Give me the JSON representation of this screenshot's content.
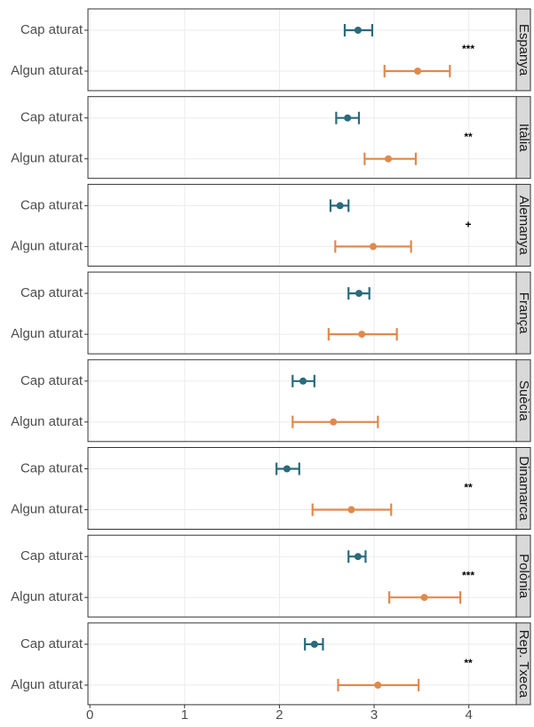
{
  "chart_data": {
    "type": "errorbar",
    "xlim": [
      -0.02,
      4.5
    ],
    "xticks": [
      0,
      1,
      2,
      3,
      4
    ],
    "grid": true,
    "colors": [
      "#2a6a7c",
      "#e0894d"
    ],
    "facets": [
      {
        "label": "Espanya",
        "categories": [
          "Cap aturat",
          "Algun aturat"
        ],
        "values": [
          2.83,
          3.46
        ],
        "lower": [
          2.69,
          3.11
        ],
        "upper": [
          2.98,
          3.8
        ],
        "annotation": "***"
      },
      {
        "label": "Itàlia",
        "categories": [
          "Cap aturat",
          "Algun aturat"
        ],
        "values": [
          2.72,
          3.15
        ],
        "lower": [
          2.6,
          2.9
        ],
        "upper": [
          2.84,
          3.44
        ],
        "annotation": "**"
      },
      {
        "label": "Alemanya",
        "categories": [
          "Cap aturat",
          "Algun aturat"
        ],
        "values": [
          2.64,
          2.99
        ],
        "lower": [
          2.54,
          2.59
        ],
        "upper": [
          2.73,
          3.39
        ],
        "annotation": "+"
      },
      {
        "label": "França",
        "categories": [
          "Cap aturat",
          "Algun aturat"
        ],
        "values": [
          2.84,
          2.87
        ],
        "lower": [
          2.73,
          2.52
        ],
        "upper": [
          2.95,
          3.24
        ]
      },
      {
        "label": "Suècia",
        "categories": [
          "Cap aturat",
          "Algun aturat"
        ],
        "values": [
          2.25,
          2.57
        ],
        "lower": [
          2.14,
          2.14
        ],
        "upper": [
          2.37,
          3.04
        ]
      },
      {
        "label": "Dinamarca",
        "categories": [
          "Cap aturat",
          "Algun aturat"
        ],
        "values": [
          2.08,
          2.76
        ],
        "lower": [
          1.97,
          2.35
        ],
        "upper": [
          2.21,
          3.18
        ],
        "annotation": "**"
      },
      {
        "label": "Polònia",
        "categories": [
          "Cap aturat",
          "Algun aturat"
        ],
        "values": [
          2.83,
          3.53
        ],
        "lower": [
          2.73,
          3.16
        ],
        "upper": [
          2.91,
          3.91
        ],
        "annotation": "***"
      },
      {
        "label": "Rep. Txeca",
        "categories": [
          "Cap aturat",
          "Algun aturat"
        ],
        "values": [
          2.37,
          3.04
        ],
        "lower": [
          2.27,
          2.62
        ],
        "upper": [
          2.46,
          3.47
        ],
        "annotation": "**"
      }
    ]
  }
}
